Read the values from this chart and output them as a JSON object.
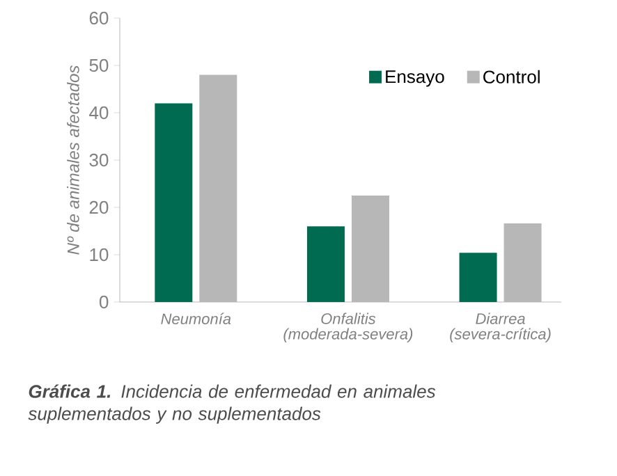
{
  "chart_data": {
    "type": "bar",
    "title": "**Gráfica 1.** Incidencia de enfermedad en animales suplementados y no suplementados",
    "ylabel": "Nº de animales afectados",
    "categories": [
      "Neumonía",
      "Onfalitis (moderada-severa)",
      "Diarrea (severa-crítica)"
    ],
    "series": [
      {
        "name": "Ensayo",
        "color": "#006b50",
        "values": [
          42,
          16,
          10.4
        ]
      },
      {
        "name": "Control",
        "color": "#b7b7b7",
        "values": [
          48,
          22.5,
          16.6
        ]
      }
    ],
    "ylim": [
      0,
      60
    ],
    "yticks": [
      0,
      10,
      20,
      30,
      40,
      50,
      60
    ],
    "legend": "top right"
  }
}
